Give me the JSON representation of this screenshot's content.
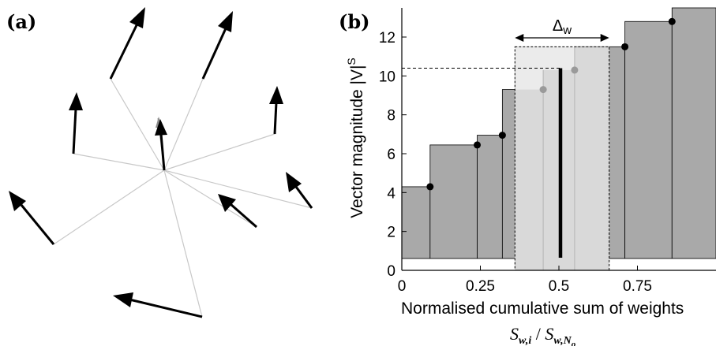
{
  "panel_a": {
    "label": "(a)"
  },
  "panel_b": {
    "label": "(b)",
    "ylabel": "Vector magnitude  |V|",
    "ylabel_sup": "S",
    "xlabel": "Normalised cumulative sum of weights",
    "formula": "S",
    "formula_sub1": "w,i",
    "formula_sep": " / ",
    "formula_sub2": "w,N",
    "formula_sub3": "o",
    "delta_label": "Δ",
    "delta_sub": "w"
  },
  "chart_data": {
    "type": "bar",
    "title": "",
    "xlabel": "Normalised cumulative sum of weights",
    "ylabel": "Vector magnitude |V|^S",
    "xlim": [
      0,
      1
    ],
    "ylim": [
      0,
      13.5
    ],
    "xticks": [
      "0",
      "0.25",
      "0.5",
      "0.75"
    ],
    "yticks": [
      "0",
      "2",
      "4",
      "6",
      "8",
      "10",
      "12"
    ],
    "bars": [
      {
        "x0": 0.0,
        "x1": 0.09,
        "value": 4.3
      },
      {
        "x0": 0.09,
        "x1": 0.24,
        "value": 6.45
      },
      {
        "x0": 0.24,
        "x1": 0.32,
        "value": 6.95
      },
      {
        "x0": 0.32,
        "x1": 0.45,
        "value": 9.3
      },
      {
        "x0": 0.45,
        "x1": 0.55,
        "value": 10.3
      },
      {
        "x0": 0.55,
        "x1": 0.71,
        "value": 11.5
      },
      {
        "x0": 0.71,
        "x1": 0.86,
        "value": 12.8
      },
      {
        "x0": 0.86,
        "x1": 1.0,
        "value": 13.9
      }
    ],
    "points": [
      {
        "x": 0.09,
        "y": 4.3,
        "highlight": false
      },
      {
        "x": 0.24,
        "y": 6.45,
        "highlight": false
      },
      {
        "x": 0.32,
        "y": 6.95,
        "highlight": false
      },
      {
        "x": 0.45,
        "y": 9.3,
        "highlight": true
      },
      {
        "x": 0.55,
        "y": 10.3,
        "highlight": true
      },
      {
        "x": 0.71,
        "y": 11.5,
        "highlight": false
      },
      {
        "x": 0.86,
        "y": 12.8,
        "highlight": false
      }
    ],
    "median_x": 0.505,
    "median_y": 10.4,
    "window": {
      "x0": 0.36,
      "x1": 0.66,
      "top": 11.5,
      "width_label": "Δw"
    }
  },
  "colors": {
    "bar_fill": "#a9a9a9",
    "window_fill": "#d9d9d9",
    "window_top_fill": "#ebebeb",
    "highlight_point": "#9a9a9a",
    "panel_a_line": "#c8c8c8",
    "arrow": "#000000"
  }
}
